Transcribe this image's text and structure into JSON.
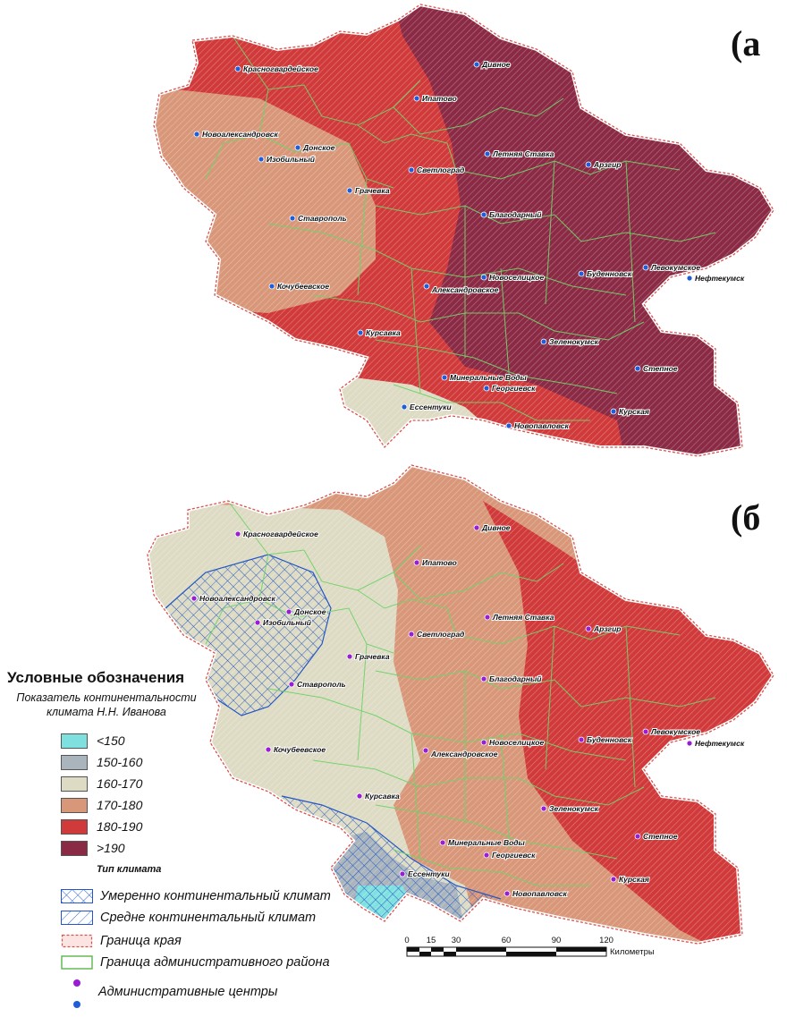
{
  "panels": [
    {
      "letter": "(а"
    },
    {
      "letter": "(б"
    }
  ],
  "cities": [
    {
      "name": "Красногвардейское"
    },
    {
      "name": "Дивное"
    },
    {
      "name": "Ипатово"
    },
    {
      "name": "Новоалександровск"
    },
    {
      "name": "Донское"
    },
    {
      "name": "Изобильный"
    },
    {
      "name": "Светлоград"
    },
    {
      "name": "Летняя Ставка"
    },
    {
      "name": "Арзгир"
    },
    {
      "name": "Грачевка"
    },
    {
      "name": "Ставрополь"
    },
    {
      "name": "Благодарный"
    },
    {
      "name": "Кочубеевское"
    },
    {
      "name": "Александровское"
    },
    {
      "name": "Новоселицкое"
    },
    {
      "name": "Буденновск"
    },
    {
      "name": "Левокумское"
    },
    {
      "name": "Нефтекумск"
    },
    {
      "name": "Курсавка"
    },
    {
      "name": "Зеленокумск"
    },
    {
      "name": "Минеральные Воды"
    },
    {
      "name": "Георгиевск"
    },
    {
      "name": "Степное"
    },
    {
      "name": "Ессентуки"
    },
    {
      "name": "Курская"
    },
    {
      "name": "Новопавловск"
    }
  ],
  "legend": {
    "title": "Условные обозначения",
    "subtitle_line1": "Показатель континентальности",
    "subtitle_line2": "климата Н.Н. Иванова",
    "classes": [
      {
        "label": "<150",
        "color": "#7fe0e0"
      },
      {
        "label": "150-160",
        "color": "#a9b4bd"
      },
      {
        "label": "160-170",
        "color": "#dedbc4"
      },
      {
        "label": "170-180",
        "color": "#d9977a"
      },
      {
        "label": "180-190",
        "color": "#d13a3a"
      },
      {
        "label": ">190",
        "color": "#8b2a45"
      }
    ],
    "type_heading": "Тип климата",
    "types": [
      {
        "label": "Умеренно континентальный климат",
        "pattern": "crosshatch"
      },
      {
        "label": "Средне континентальный климат",
        "pattern": "diagonal"
      }
    ],
    "boundaries": [
      {
        "label": "Граница края",
        "color": "#d9534f"
      },
      {
        "label": "Граница административного района",
        "color": "#5ab54a"
      }
    ],
    "centers_label": "Административные центры",
    "center_colors": [
      "#9a1dd6",
      "#1f5ed8"
    ]
  },
  "scalebar": {
    "ticks": [
      "0",
      "15",
      "30",
      "60",
      "90",
      "120"
    ],
    "unit": "Километры"
  }
}
